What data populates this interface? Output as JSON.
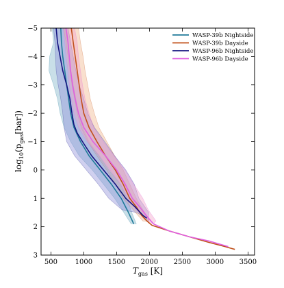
{
  "chart_data": {
    "type": "line",
    "title": "",
    "xlabel_main": "T",
    "xlabel_sub": "gas",
    "xlabel_unit": " [K]",
    "ylabel_prefix": "log",
    "ylabel_base": "10",
    "ylabel_open": "(p",
    "ylabel_sub": "gas",
    "ylabel_close": "[bar])",
    "xlim": [
      350,
      3600
    ],
    "ylim": [
      3,
      -5
    ],
    "x_ticks": [
      500,
      1000,
      1500,
      2000,
      2500,
      3000,
      3500
    ],
    "y_ticks": [
      -5,
      -4,
      -3,
      -2,
      -1,
      0,
      1,
      2,
      3
    ],
    "grid": false,
    "legend_position": "top-right",
    "series": [
      {
        "name": "WASP-39b Nightside",
        "color": "#1f7a99",
        "fill_color": "#7fb2c8",
        "points": [
          [
            650,
            -5
          ],
          [
            660,
            -4.5
          ],
          [
            680,
            -4
          ],
          [
            710,
            -3.5
          ],
          [
            740,
            -3
          ],
          [
            770,
            -2.5
          ],
          [
            800,
            -2
          ],
          [
            850,
            -1.5
          ],
          [
            950,
            -1
          ],
          [
            1080,
            -0.5
          ],
          [
            1250,
            0
          ],
          [
            1420,
            0.5
          ],
          [
            1570,
            1
          ],
          [
            1680,
            1.5
          ],
          [
            1760,
            1.9
          ]
        ],
        "band": [
          [
            420,
            -5
          ],
          [
            520,
            -5
          ],
          [
            540,
            -4.5
          ],
          [
            480,
            -4
          ],
          [
            470,
            -3.5
          ],
          [
            540,
            -3
          ],
          [
            600,
            -2.5
          ],
          [
            640,
            -2
          ],
          [
            700,
            -1.5
          ],
          [
            800,
            -1
          ],
          [
            930,
            -0.5
          ],
          [
            1130,
            0
          ],
          [
            1300,
            0.5
          ],
          [
            1470,
            1
          ],
          [
            1610,
            1.5
          ],
          [
            1720,
            1.9
          ],
          [
            1800,
            1.9
          ],
          [
            1730,
            1.5
          ],
          [
            1660,
            1
          ],
          [
            1560,
            0.5
          ],
          [
            1380,
            0
          ],
          [
            1230,
            -0.5
          ],
          [
            1080,
            -1
          ],
          [
            980,
            -1.5
          ],
          [
            920,
            -2
          ],
          [
            880,
            -2.5
          ],
          [
            840,
            -3
          ],
          [
            800,
            -3.5
          ],
          [
            780,
            -4
          ],
          [
            760,
            -4.5
          ],
          [
            720,
            -5
          ]
        ]
      },
      {
        "name": "WASP-39b Dayside",
        "color": "#c0501a",
        "fill_color": "#f0b48a",
        "points": [
          [
            810,
            -5
          ],
          [
            840,
            -4.5
          ],
          [
            870,
            -4
          ],
          [
            900,
            -3.5
          ],
          [
            930,
            -3
          ],
          [
            960,
            -2.5
          ],
          [
            1000,
            -2
          ],
          [
            1080,
            -1.5
          ],
          [
            1200,
            -1
          ],
          [
            1330,
            -0.5
          ],
          [
            1480,
            0
          ],
          [
            1600,
            0.5
          ],
          [
            1700,
            1
          ],
          [
            1800,
            1.3
          ],
          [
            1880,
            1.6
          ],
          [
            1960,
            1.8
          ],
          [
            2040,
            1.95
          ],
          [
            2300,
            2.15
          ],
          [
            2600,
            2.35
          ],
          [
            2900,
            2.55
          ],
          [
            3150,
            2.7
          ],
          [
            3300,
            2.8
          ]
        ],
        "band": [
          [
            690,
            -5
          ],
          [
            730,
            -4.5
          ],
          [
            760,
            -4
          ],
          [
            790,
            -3.5
          ],
          [
            820,
            -3
          ],
          [
            860,
            -2.5
          ],
          [
            900,
            -2
          ],
          [
            960,
            -1.5
          ],
          [
            1060,
            -1
          ],
          [
            1200,
            -0.5
          ],
          [
            1350,
            0
          ],
          [
            1480,
            0.5
          ],
          [
            1600,
            1
          ],
          [
            1900,
            1.8
          ],
          [
            2000,
            1.8
          ],
          [
            1800,
            1
          ],
          [
            1700,
            0.5
          ],
          [
            1600,
            0
          ],
          [
            1470,
            -0.5
          ],
          [
            1350,
            -1
          ],
          [
            1230,
            -1.5
          ],
          [
            1160,
            -2
          ],
          [
            1100,
            -2.5
          ],
          [
            1060,
            -3
          ],
          [
            1020,
            -3.5
          ],
          [
            990,
            -4
          ],
          [
            950,
            -4.5
          ],
          [
            920,
            -5
          ]
        ]
      },
      {
        "name": "WASP-96b Nightside",
        "color": "#141480",
        "fill_color": "#8f8fd8",
        "points": [
          [
            580,
            -5
          ],
          [
            600,
            -4.5
          ],
          [
            640,
            -4
          ],
          [
            680,
            -3.5
          ],
          [
            740,
            -3
          ],
          [
            790,
            -2.5
          ],
          [
            820,
            -2
          ],
          [
            850,
            -1.6
          ],
          [
            900,
            -1.3
          ],
          [
            980,
            -1
          ],
          [
            1120,
            -0.5
          ],
          [
            1300,
            0
          ],
          [
            1480,
            0.5
          ],
          [
            1640,
            1
          ],
          [
            1780,
            1.3
          ],
          [
            1900,
            1.6
          ],
          [
            1960,
            1.7
          ]
        ],
        "band": [
          [
            540,
            -5
          ],
          [
            560,
            -4.5
          ],
          [
            570,
            -4
          ],
          [
            580,
            -3.5
          ],
          [
            610,
            -3
          ],
          [
            650,
            -2.5
          ],
          [
            680,
            -2
          ],
          [
            700,
            -1.5
          ],
          [
            740,
            -1
          ],
          [
            860,
            -0.5
          ],
          [
            1040,
            0
          ],
          [
            1220,
            0.5
          ],
          [
            1380,
            1
          ],
          [
            1580,
            1.4
          ],
          [
            1800,
            1.5
          ],
          [
            1920,
            1.65
          ],
          [
            1980,
            1.8
          ],
          [
            1990,
            1.5
          ],
          [
            1870,
            1.1
          ],
          [
            1840,
            1
          ],
          [
            1770,
            0.5
          ],
          [
            1640,
            0
          ],
          [
            1470,
            -0.5
          ],
          [
            1320,
            -1
          ],
          [
            1160,
            -1.5
          ],
          [
            1060,
            -2
          ],
          [
            1000,
            -2.5
          ],
          [
            930,
            -3
          ],
          [
            880,
            -3.5
          ],
          [
            840,
            -4
          ],
          [
            800,
            -4.5
          ],
          [
            760,
            -5
          ]
        ]
      },
      {
        "name": "WASP-96b Dayside",
        "color": "#e060e0",
        "fill_color": "#f4a4c8",
        "points": [
          [
            730,
            -5
          ],
          [
            760,
            -4.5
          ],
          [
            780,
            -4
          ],
          [
            800,
            -3.5
          ],
          [
            830,
            -3
          ],
          [
            870,
            -2.5
          ],
          [
            920,
            -2
          ],
          [
            1000,
            -1.5
          ],
          [
            1140,
            -1
          ],
          [
            1330,
            -0.5
          ],
          [
            1500,
            0
          ],
          [
            1630,
            0.5
          ],
          [
            1740,
            1
          ],
          [
            1850,
            1.3
          ],
          [
            1950,
            1.6
          ],
          [
            2060,
            1.9
          ],
          [
            2300,
            2.15
          ],
          [
            2600,
            2.35
          ],
          [
            2900,
            2.5
          ],
          [
            3200,
            2.7
          ]
        ],
        "band": [
          [
            690,
            -5
          ],
          [
            710,
            -4.5
          ],
          [
            730,
            -4
          ],
          [
            760,
            -3.5
          ],
          [
            780,
            -3
          ],
          [
            810,
            -2.5
          ],
          [
            850,
            -2
          ],
          [
            920,
            -1.5
          ],
          [
            1050,
            -1
          ],
          [
            1240,
            -0.5
          ],
          [
            1400,
            0
          ],
          [
            1560,
            0.5
          ],
          [
            1680,
            1
          ],
          [
            1800,
            1.4
          ],
          [
            1960,
            1.8
          ],
          [
            2060,
            1.9
          ],
          [
            2100,
            1.8
          ],
          [
            1980,
            1.4
          ],
          [
            1900,
            1
          ],
          [
            1760,
            0.5
          ],
          [
            1630,
            0
          ],
          [
            1460,
            -0.5
          ],
          [
            1300,
            -1
          ],
          [
            1150,
            -1.5
          ],
          [
            1080,
            -2
          ],
          [
            1020,
            -2.5
          ],
          [
            980,
            -3
          ],
          [
            950,
            -3.5
          ],
          [
            920,
            -4
          ],
          [
            900,
            -4.5
          ],
          [
            860,
            -5
          ]
        ]
      }
    ]
  }
}
